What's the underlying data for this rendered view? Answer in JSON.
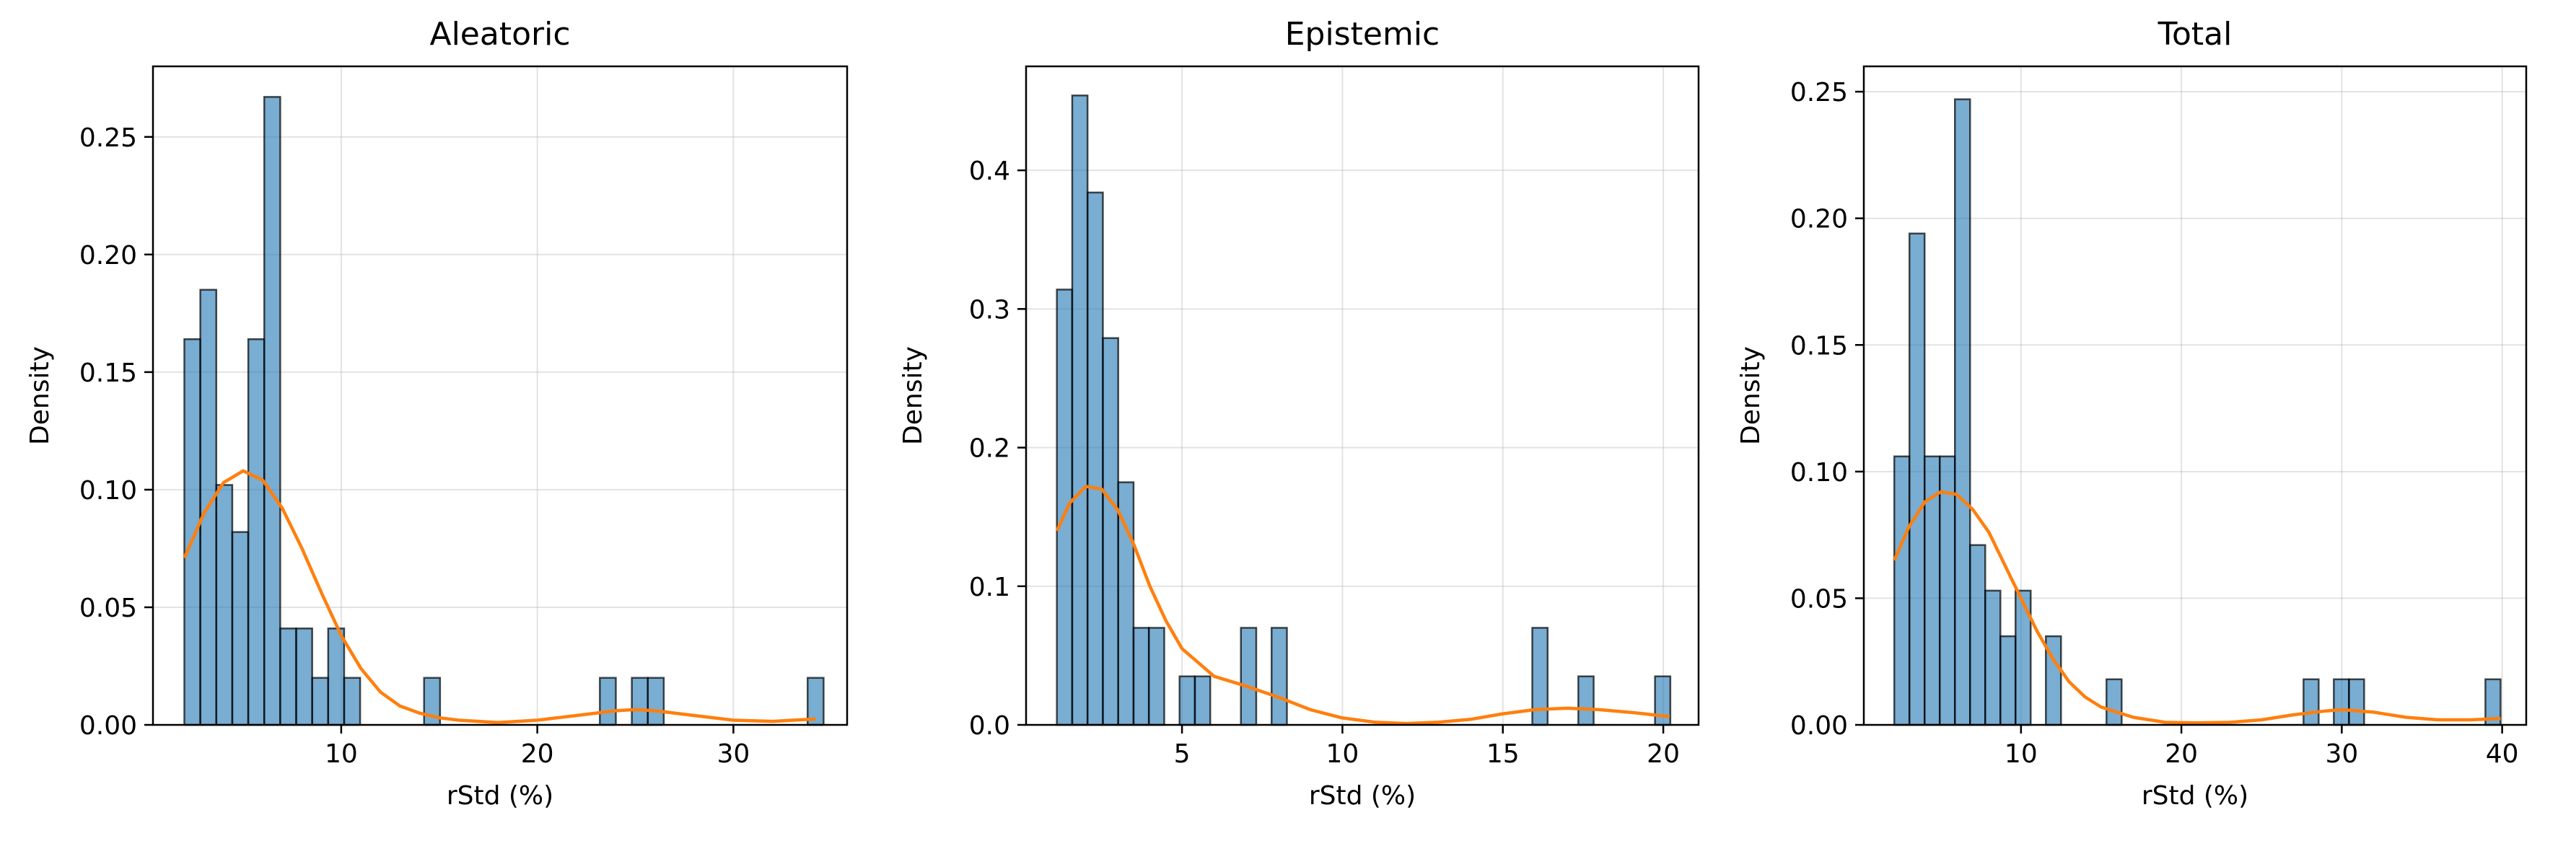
{
  "colors": {
    "bars": "#1f77b4",
    "kde": "#ff7f0e"
  },
  "chart_data": [
    {
      "type": "bar",
      "title": "Aleatoric",
      "xlabel": "rStd (%)",
      "ylabel": "Density",
      "xlim": [
        0.4,
        35.8
      ],
      "ylim": [
        0,
        0.28
      ],
      "xticks": [
        10,
        20,
        30
      ],
      "yticks": [
        0.0,
        0.05,
        0.1,
        0.15,
        0.2,
        0.25
      ],
      "ytick_labels": [
        "0.00",
        "0.05",
        "0.10",
        "0.15",
        "0.20",
        "0.25"
      ],
      "grid": true,
      "histogram": {
        "bin_start": 2.0,
        "bin_width": 0.815,
        "density": [
          0.164,
          0.185,
          0.102,
          0.082,
          0.164,
          0.267,
          0.041,
          0.041,
          0.02,
          0.041,
          0.02,
          0,
          0,
          0,
          0,
          0.02,
          0,
          0,
          0,
          0,
          0,
          0,
          0,
          0,
          0,
          0,
          0.02,
          0,
          0.02,
          0.02,
          0,
          0,
          0,
          0,
          0,
          0,
          0,
          0,
          0,
          0.02
        ]
      },
      "kde": {
        "x": [
          2.0,
          3.0,
          4.0,
          5.0,
          6.0,
          7.0,
          8.0,
          9.0,
          10.0,
          11.0,
          12.0,
          13.0,
          14.0,
          15.0,
          16.0,
          18.0,
          20.0,
          22.0,
          24.0,
          25.0,
          26.0,
          28.0,
          30.0,
          32.0,
          34.2
        ],
        "y": [
          0.071,
          0.09,
          0.103,
          0.108,
          0.104,
          0.092,
          0.075,
          0.056,
          0.038,
          0.024,
          0.014,
          0.008,
          0.005,
          0.003,
          0.002,
          0.001,
          0.002,
          0.004,
          0.006,
          0.0065,
          0.006,
          0.004,
          0.002,
          0.0015,
          0.0025
        ]
      }
    },
    {
      "type": "bar",
      "title": "Epistemic",
      "xlabel": "rStd (%)",
      "ylabel": "Density",
      "xlim": [
        0.14,
        21.1
      ],
      "ylim": [
        0,
        0.475
      ],
      "xticks": [
        5,
        10,
        15,
        20
      ],
      "yticks": [
        0.0,
        0.1,
        0.2,
        0.3,
        0.4
      ],
      "ytick_labels": [
        "0.0",
        "0.1",
        "0.2",
        "0.3",
        "0.4"
      ],
      "grid": true,
      "histogram": {
        "bin_start": 1.1,
        "bin_width": 0.478,
        "density": [
          0.314,
          0.454,
          0.384,
          0.279,
          0.175,
          0.07,
          0.07,
          0,
          0.035,
          0.035,
          0,
          0,
          0.07,
          0,
          0.07,
          0,
          0,
          0,
          0,
          0,
          0,
          0,
          0,
          0,
          0,
          0,
          0,
          0,
          0,
          0,
          0,
          0.07,
          0,
          0,
          0.035,
          0,
          0,
          0,
          0,
          0.035
        ]
      },
      "kde": {
        "x": [
          1.1,
          1.5,
          2.0,
          2.5,
          3.0,
          3.5,
          4.0,
          4.5,
          5.0,
          6.0,
          7.0,
          8.0,
          9.0,
          10.0,
          11.0,
          12.0,
          13.0,
          14.0,
          15.0,
          16.0,
          17.0,
          18.0,
          19.0,
          20.2
        ],
        "y": [
          0.14,
          0.16,
          0.172,
          0.17,
          0.155,
          0.13,
          0.1,
          0.075,
          0.055,
          0.035,
          0.028,
          0.02,
          0.011,
          0.005,
          0.002,
          0.001,
          0.002,
          0.004,
          0.008,
          0.011,
          0.012,
          0.011,
          0.009,
          0.006
        ]
      }
    },
    {
      "type": "bar",
      "title": "Total",
      "xlabel": "rStd (%)",
      "ylabel": "Density",
      "xlim": [
        0.2,
        41.5
      ],
      "ylim": [
        0,
        0.26
      ],
      "xticks": [
        10,
        20,
        30,
        40
      ],
      "yticks": [
        0.0,
        0.05,
        0.1,
        0.15,
        0.2,
        0.25
      ],
      "ytick_labels": [
        "0.00",
        "0.05",
        "0.10",
        "0.15",
        "0.20",
        "0.25"
      ],
      "grid": true,
      "histogram": {
        "bin_start": 2.1,
        "bin_width": 0.945,
        "density": [
          0.106,
          0.194,
          0.106,
          0.106,
          0.247,
          0.071,
          0.053,
          0.035,
          0.053,
          0,
          0.035,
          0,
          0,
          0,
          0.018,
          0,
          0,
          0,
          0,
          0,
          0,
          0,
          0,
          0,
          0,
          0,
          0,
          0.018,
          0,
          0.018,
          0.018,
          0,
          0,
          0,
          0,
          0,
          0,
          0,
          0,
          0.018
        ]
      },
      "kde": {
        "x": [
          2.1,
          3.0,
          4.0,
          5.0,
          6.0,
          7.0,
          8.0,
          9.0,
          10.0,
          11.0,
          12.0,
          13.0,
          14.0,
          15.0,
          17.0,
          19.0,
          21.0,
          23.0,
          25.0,
          27.0,
          29.0,
          30.0,
          32.0,
          34.0,
          36.0,
          38.0,
          39.9
        ],
        "y": [
          0.065,
          0.078,
          0.088,
          0.092,
          0.091,
          0.085,
          0.076,
          0.063,
          0.05,
          0.037,
          0.026,
          0.017,
          0.011,
          0.007,
          0.003,
          0.001,
          0.0008,
          0.001,
          0.002,
          0.004,
          0.0055,
          0.006,
          0.005,
          0.003,
          0.002,
          0.002,
          0.0025
        ]
      }
    }
  ]
}
